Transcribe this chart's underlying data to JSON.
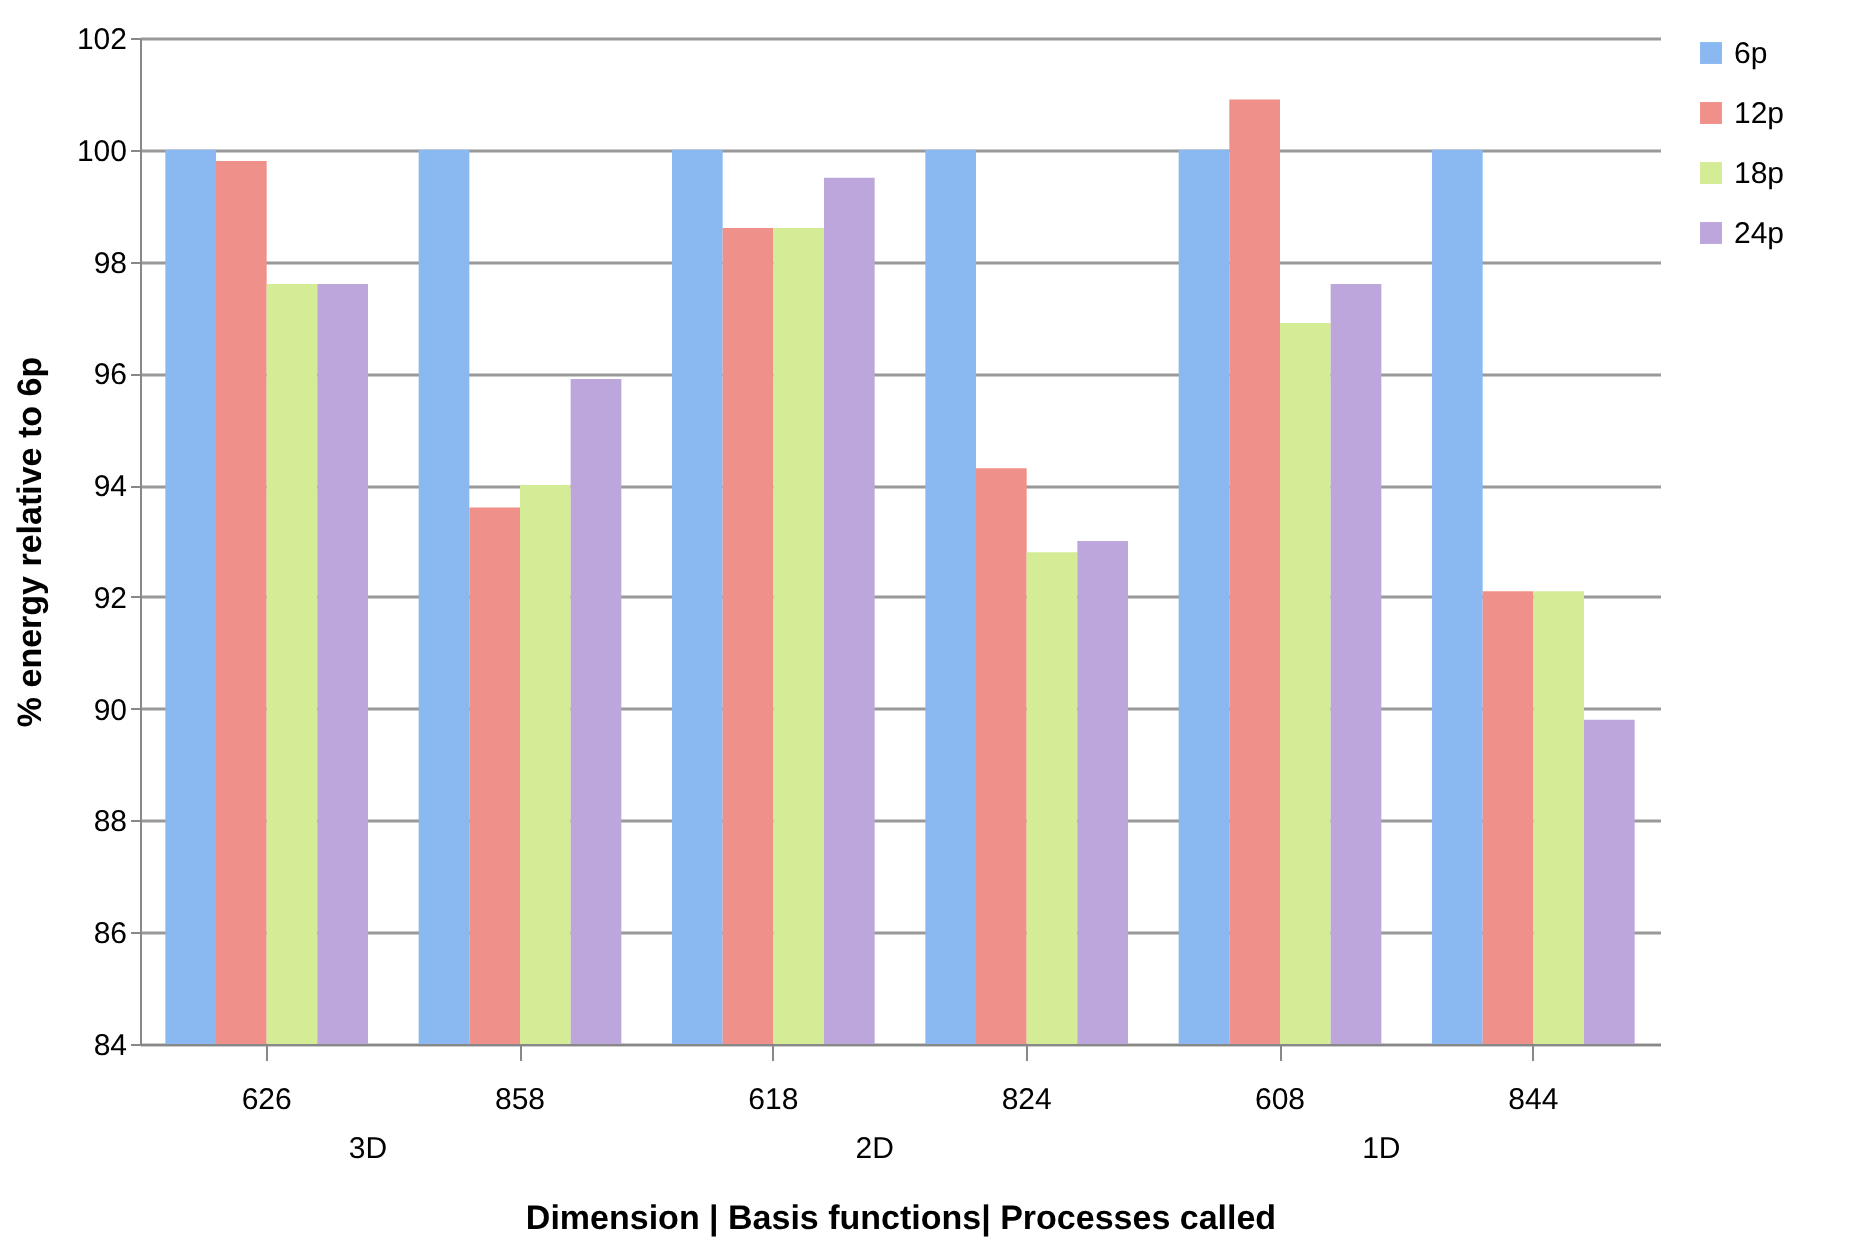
{
  "chart_data": {
    "type": "bar",
    "xlabel": "Dimension | Basis functions| Processes called",
    "ylabel": "% energy relative to 6p",
    "categories": [
      "626",
      "858",
      "618",
      "824",
      "608",
      "844"
    ],
    "annotations": [
      "3D",
      "2D",
      "1D"
    ],
    "series": [
      {
        "name": "6p",
        "color": "#8ab8f0",
        "values": [
          100,
          100,
          100,
          100,
          100,
          100
        ]
      },
      {
        "name": "12p",
        "color": "#f0908a",
        "values": [
          99.8,
          93.6,
          98.6,
          94.3,
          100.9,
          92.1
        ]
      },
      {
        "name": "18p",
        "color": "#d4ec96",
        "values": [
          97.6,
          94.0,
          98.6,
          92.8,
          96.9,
          92.1
        ]
      },
      {
        "name": "24p",
        "color": "#bda6dc",
        "values": [
          97.6,
          95.9,
          99.5,
          93.0,
          97.6,
          89.8
        ]
      }
    ],
    "ylim": [
      84,
      102
    ],
    "yticks": [
      84,
      86,
      88,
      90,
      92,
      94,
      96,
      98,
      100,
      102
    ],
    "grid": "y",
    "legend": "right"
  }
}
